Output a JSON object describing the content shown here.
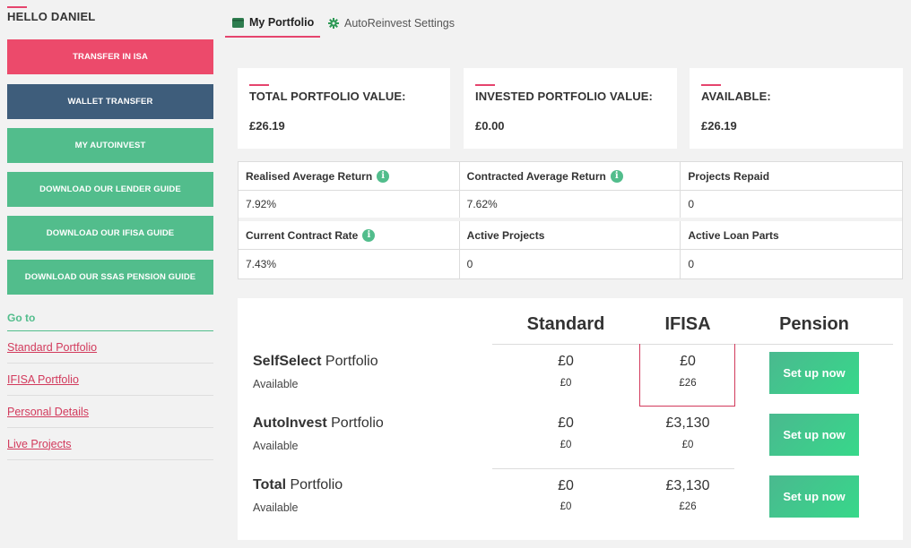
{
  "sidebar": {
    "greeting": "HELLO DANIEL",
    "buttons": [
      {
        "label": "TRANSFER IN ISA",
        "color": "#ec4a6b"
      },
      {
        "label": "WALLET TRANSFER",
        "color": "#3e5d7b"
      },
      {
        "label": "MY AUTOINVEST",
        "color": "#52bd8c"
      },
      {
        "label": "DOWNLOAD OUR LENDER GUIDE",
        "color": "#52bd8c"
      },
      {
        "label": "DOWNLOAD OUR IFISA GUIDE",
        "color": "#52bd8c"
      },
      {
        "label": "DOWNLOAD OUR SSAS PENSION GUIDE",
        "color": "#52bd8c"
      }
    ],
    "goto_label": "Go to",
    "links": [
      "Standard Portfolio",
      "IFISA Portfolio",
      "Personal Details",
      "Live Projects"
    ]
  },
  "tabs": [
    {
      "label": "My Portfolio",
      "icon": "wallet-icon",
      "active": true
    },
    {
      "label": "AutoReinvest Settings",
      "icon": "gear-icon",
      "active": false
    }
  ],
  "summary": [
    {
      "label": "TOTAL PORTFOLIO VALUE:",
      "value": "£26.19"
    },
    {
      "label": "INVESTED PORTFOLIO VALUE:",
      "value": "£0.00"
    },
    {
      "label": "AVAILABLE:",
      "value": "£26.19"
    }
  ],
  "stats": {
    "row1_headers": [
      "Realised Average Return",
      "Contracted Average Return",
      "Projects Repaid"
    ],
    "row1_values": [
      "7.92%",
      "7.62%",
      "0"
    ],
    "row2_headers": [
      "Current Contract Rate",
      "Active Projects",
      "Active Loan Parts"
    ],
    "row2_values": [
      "7.43%",
      "0",
      "0"
    ]
  },
  "matrix": {
    "columns": [
      "Standard",
      "IFISA",
      "Pension"
    ],
    "rows": [
      {
        "name_bold": "SelfSelect",
        "name_rest": " Portfolio",
        "sub": "Available",
        "standard": "£0",
        "standard_sub": "£0",
        "ifisa": "£0",
        "ifisa_sub": "£26",
        "pension_button": "Set up now"
      },
      {
        "name_bold": "AutoInvest",
        "name_rest": " Portfolio",
        "sub": "Available",
        "standard": "£0",
        "standard_sub": "£0",
        "ifisa": "£3,130",
        "ifisa_sub": "£0",
        "pension_button": "Set up now"
      },
      {
        "name_bold": "Total",
        "name_rest": " Portfolio",
        "sub": "Available",
        "standard": "£0",
        "standard_sub": "£0",
        "ifisa": "£3,130",
        "ifisa_sub": "£26",
        "pension_button": "Set up now"
      }
    ]
  },
  "colors": {
    "accent_pink": "#e5446d",
    "green": "#52bd8c",
    "navy": "#3e5d7b"
  }
}
